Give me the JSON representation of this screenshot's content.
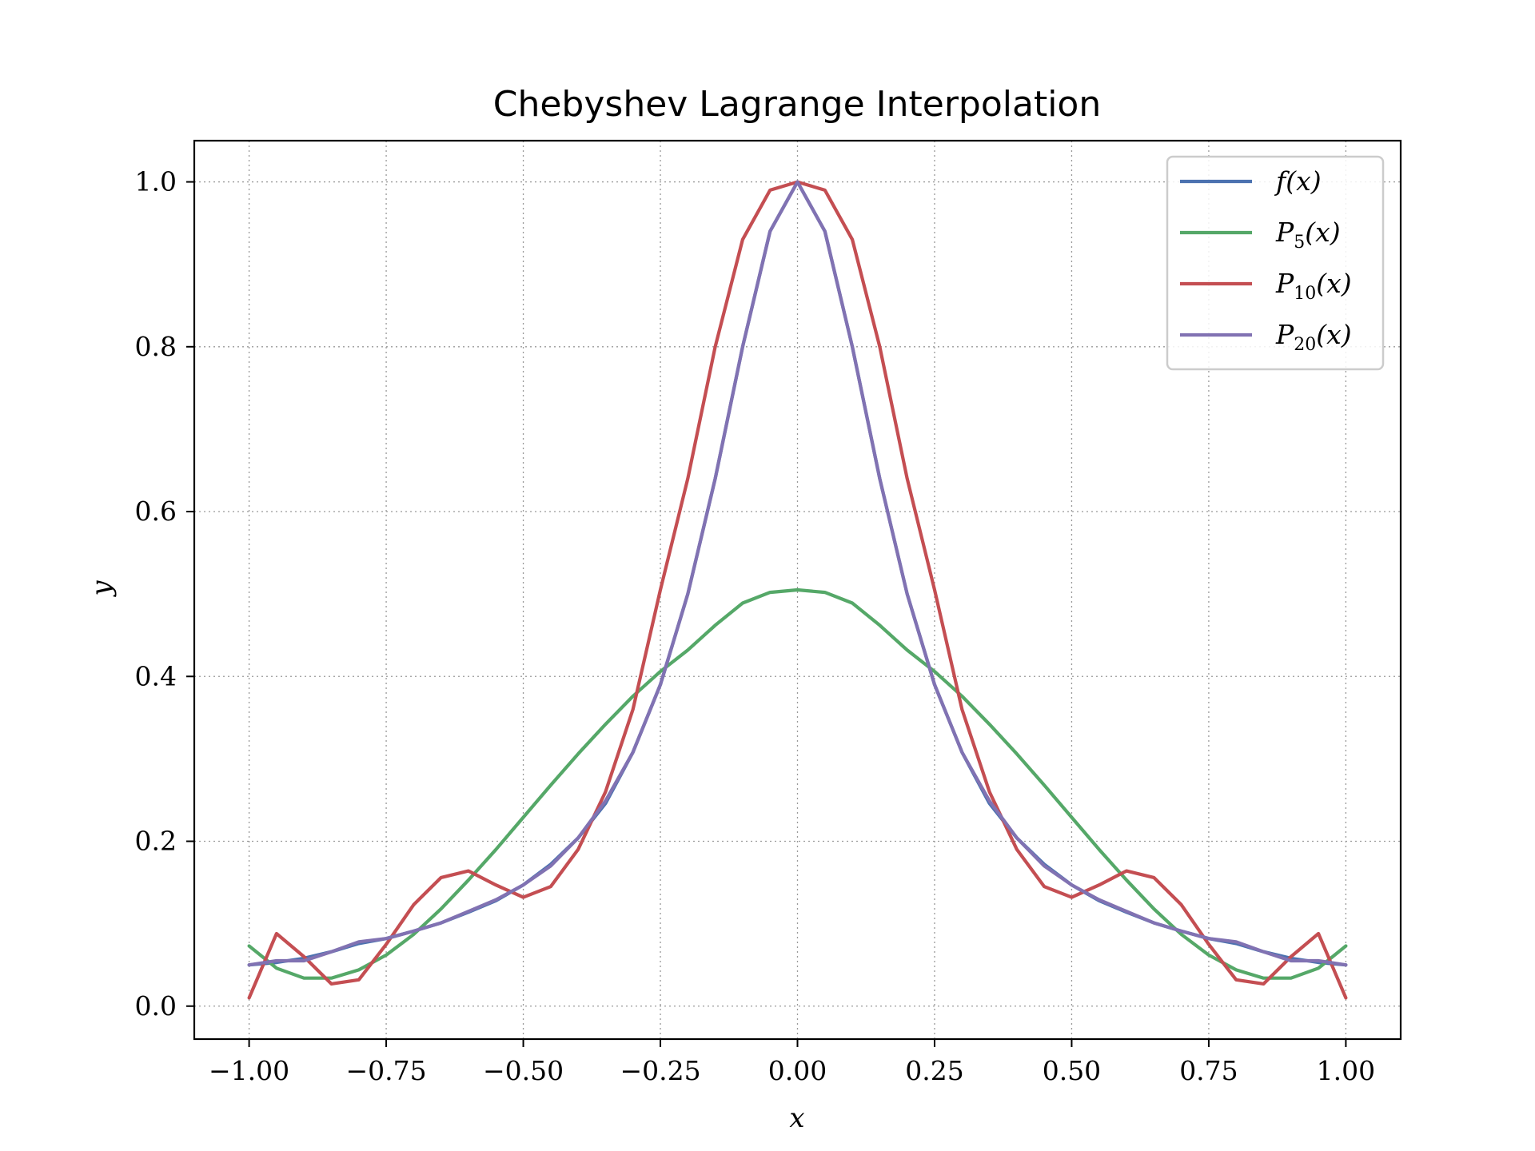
{
  "chart_data": {
    "type": "line",
    "title": "Chebyshev Lagrange Interpolation",
    "xlabel": "x",
    "ylabel": "y",
    "xlim": [
      -1.1,
      1.1
    ],
    "ylim": [
      -0.04,
      1.05
    ],
    "xticks": [
      -1.0,
      -0.75,
      -0.5,
      -0.25,
      0.0,
      0.25,
      0.5,
      0.75,
      1.0
    ],
    "xtick_labels": [
      "−1.00",
      "−0.75",
      "−0.50",
      "−0.25",
      "0.00",
      "0.25",
      "0.50",
      "0.75",
      "1.00"
    ],
    "yticks": [
      0.0,
      0.2,
      0.4,
      0.6,
      0.8,
      1.0
    ],
    "ytick_labels": [
      "0.0",
      "0.2",
      "0.4",
      "0.6",
      "0.8",
      "1.0"
    ],
    "grid": true,
    "legend_position": "top-right",
    "x": [
      -1.0,
      -0.95,
      -0.9,
      -0.85,
      -0.8,
      -0.75,
      -0.7,
      -0.65,
      -0.6,
      -0.55,
      -0.5,
      -0.45,
      -0.4,
      -0.35,
      -0.3,
      -0.25,
      -0.2,
      -0.15,
      -0.1,
      -0.05,
      0.0,
      0.05,
      0.1,
      0.15,
      0.2,
      0.25,
      0.3,
      0.35,
      0.4,
      0.45,
      0.5,
      0.55,
      0.6,
      0.65,
      0.7,
      0.75,
      0.8,
      0.85,
      0.9,
      0.95,
      1.0
    ],
    "series": [
      {
        "name": "f(x)",
        "label_main": "f(x)",
        "label_sub": "",
        "color": "#4c72b0",
        "values": [
          0.05,
          0.053,
          0.058,
          0.066,
          0.076,
          0.082,
          0.091,
          0.101,
          0.114,
          0.128,
          0.147,
          0.172,
          0.204,
          0.246,
          0.308,
          0.39,
          0.5,
          0.64,
          0.8,
          0.94,
          1.0,
          0.94,
          0.8,
          0.64,
          0.5,
          0.39,
          0.308,
          0.246,
          0.204,
          0.172,
          0.147,
          0.128,
          0.114,
          0.101,
          0.091,
          0.082,
          0.076,
          0.066,
          0.058,
          0.053,
          0.05
        ]
      },
      {
        "name": "P5(x)",
        "label_main": "P",
        "label_sub": "5",
        "color": "#55a868",
        "values": [
          0.073,
          0.046,
          0.034,
          0.034,
          0.044,
          0.062,
          0.087,
          0.118,
          0.153,
          0.19,
          0.229,
          0.268,
          0.306,
          0.342,
          0.376,
          0.406,
          0.432,
          0.462,
          0.489,
          0.502,
          0.505,
          0.502,
          0.489,
          0.462,
          0.432,
          0.406,
          0.376,
          0.342,
          0.306,
          0.268,
          0.229,
          0.19,
          0.153,
          0.118,
          0.087,
          0.062,
          0.044,
          0.034,
          0.034,
          0.046,
          0.073
        ]
      },
      {
        "name": "P10(x)",
        "label_main": "P",
        "label_sub": "10",
        "color": "#c44e52",
        "values": [
          0.01,
          0.088,
          0.06,
          0.027,
          0.032,
          0.075,
          0.123,
          0.156,
          0.164,
          0.147,
          0.132,
          0.145,
          0.19,
          0.26,
          0.36,
          0.505,
          0.64,
          0.8,
          0.93,
          0.99,
          1.0,
          0.99,
          0.93,
          0.8,
          0.64,
          0.505,
          0.36,
          0.26,
          0.19,
          0.145,
          0.132,
          0.147,
          0.164,
          0.156,
          0.123,
          0.075,
          0.032,
          0.027,
          0.06,
          0.088,
          0.01
        ]
      },
      {
        "name": "P20(x)",
        "label_main": "P",
        "label_sub": "20",
        "color": "#8172b2",
        "values": [
          0.05,
          0.055,
          0.055,
          0.066,
          0.078,
          0.082,
          0.091,
          0.101,
          0.115,
          0.129,
          0.147,
          0.17,
          0.204,
          0.249,
          0.308,
          0.39,
          0.5,
          0.64,
          0.8,
          0.94,
          1.0,
          0.94,
          0.8,
          0.64,
          0.5,
          0.39,
          0.308,
          0.249,
          0.204,
          0.17,
          0.147,
          0.129,
          0.115,
          0.101,
          0.091,
          0.082,
          0.078,
          0.066,
          0.055,
          0.055,
          0.05
        ]
      }
    ]
  }
}
